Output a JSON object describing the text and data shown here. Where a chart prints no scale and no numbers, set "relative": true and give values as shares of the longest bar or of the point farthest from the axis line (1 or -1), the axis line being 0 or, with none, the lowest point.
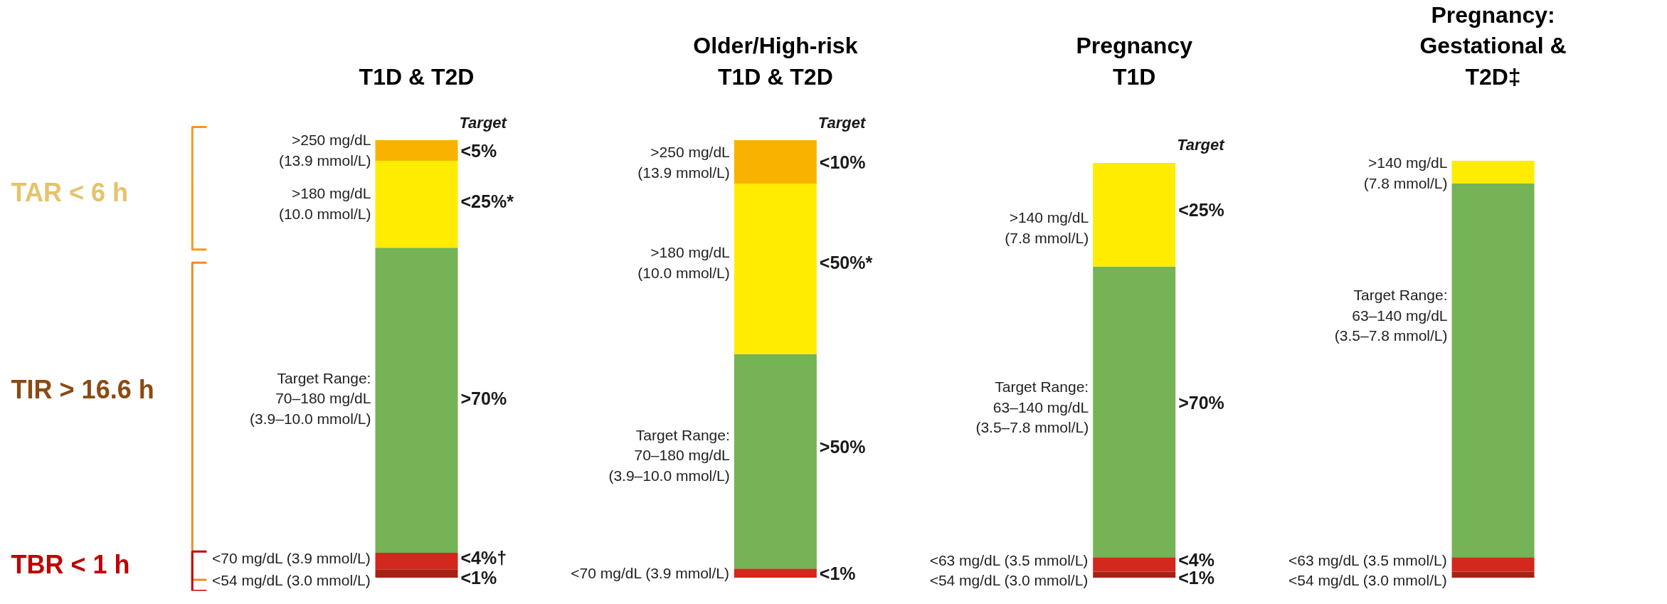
{
  "chart_data": {
    "type": "bar",
    "stacked": true,
    "relative": true,
    "grid": false,
    "categories": [
      "T1D & T2D",
      "Older/High-risk\nT1D & T2D",
      "Pregnancy\nT1D",
      "Pregnancy:\nGestational &\nT2D‡"
    ],
    "series": [
      {
        "color": "#a52214",
        "values": [
          0.019,
          0,
          0.014,
          0.014
        ]
      },
      {
        "color": "#d2281d",
        "values": [
          0.038,
          0.021,
          0.033,
          0.033
        ]
      },
      {
        "color": "#75b356",
        "values": [
          0.697,
          0.49,
          0.664,
          0.854
        ]
      },
      {
        "color": "#ffec00",
        "values": [
          0.199,
          0.39,
          0.237,
          0.052
        ]
      },
      {
        "color": "#f9b200",
        "values": [
          0.047,
          0.099,
          null,
          null
        ]
      }
    ],
    "annotations": [
      "TAR < 6 h",
      "TIR > 16.6 h",
      "TBR < 1 h",
      "Target",
      "Target",
      "Target",
      ">250 mg/dL\n(13.9 mmol/L)",
      ">180 mg/dL\n(10.0 mmol/L)",
      "Target Range:\n70–180 mg/dL\n(3.9–10.0 mmol/L)",
      "<70 mg/dL (3.9 mmol/L)",
      "<54 mg/dL (3.0 mmol/L)",
      ">250 mg/dL\n(13.9 mmol/L)",
      ">180 mg/dL\n(10.0 mmol/L)",
      "Target Range:\n70–180 mg/dL\n(3.9–10.0 mmol/L)",
      "<70 mg/dL (3.9 mmol/L)",
      ">140 mg/dL\n(7.8 mmol/L)",
      "Target Range:\n63–140 mg/dL\n(3.5–7.8 mmol/L)",
      "<63 mg/dL (3.5 mmol/L)",
      "<54 mg/dL (3.0 mmol/L)",
      ">140 mg/dL\n(7.8 mmol/L)",
      "Target Range:\n63–140 mg/dL\n(3.5–7.8 mmol/L)",
      "<63 mg/dL (3.5 mmol/L)",
      "<54 mg/dL (3.0 mmol/L)",
      "<5%",
      "<25%*",
      ">70%",
      "<4%†",
      "<1%",
      "<10%",
      "<50%*",
      ">50%",
      "<1%",
      "<25%",
      ">70%",
      "<4%",
      "<1%"
    ]
  }
}
